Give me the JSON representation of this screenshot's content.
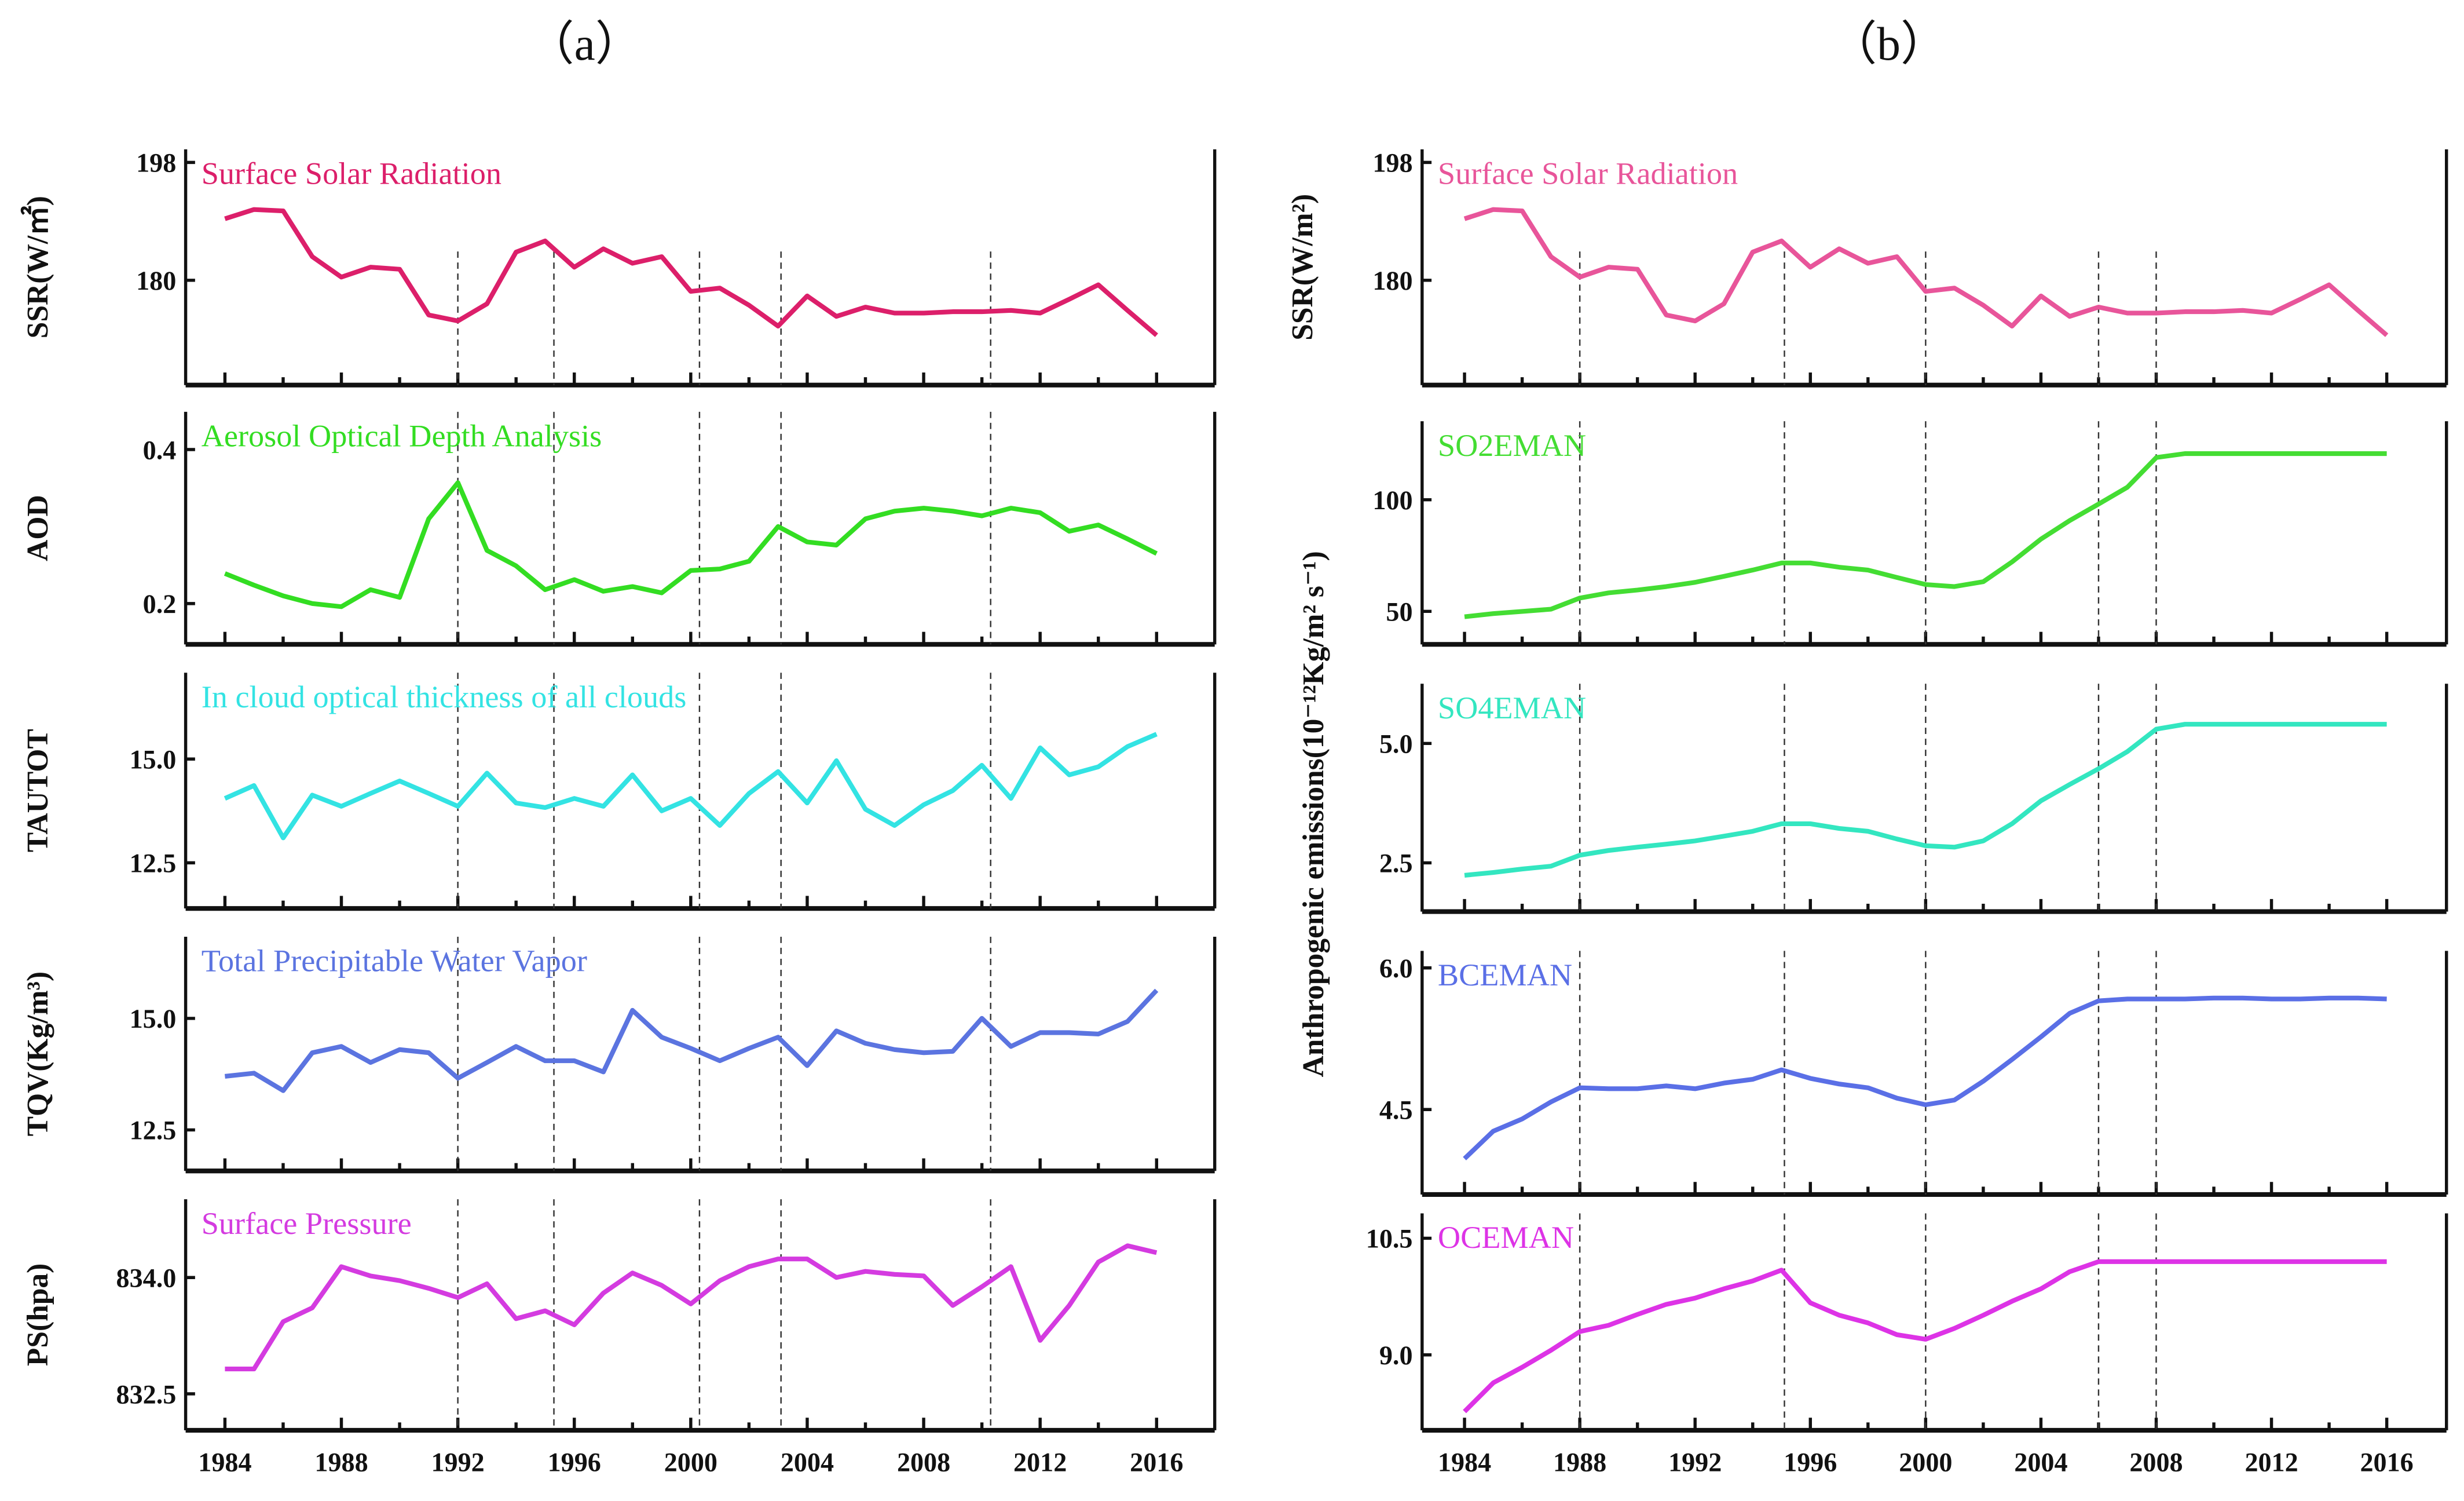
{
  "titles": {
    "a": "（a）",
    "b": "（b）"
  },
  "shared_ylabel_b": "Anthropogenic emissions(10⁻¹²Kg/m² s⁻¹)",
  "x_tick_labels": [
    "1984",
    "1988",
    "1992",
    "1996",
    "2000",
    "2004",
    "2008",
    "2012",
    "2016"
  ],
  "chart_data": [
    {
      "type": "line",
      "panel": "a",
      "label": "Surface Solar Radiation",
      "ylabel": "SSR(W/㎡)",
      "color": "#dc1f6a",
      "ylim": [
        164,
        200
      ],
      "yticks": [
        {
          "v": 180,
          "t": "180"
        },
        {
          "v": 198,
          "t": "198"
        }
      ],
      "dashed_years": [
        1992,
        1995.3,
        2000.3,
        2003.1,
        2010.3
      ],
      "values": [
        189.4,
        190.8,
        190.6,
        183.6,
        180.5,
        182,
        181.7,
        174.7,
        173.8,
        176.4,
        184.3,
        186,
        182,
        184.8,
        182.6,
        183.6,
        178.3,
        178.8,
        176.2,
        173,
        177.6,
        174.5,
        175.9,
        175,
        175,
        175.2,
        175.2,
        175.4,
        175,
        177.1,
        179.3,
        175.4,
        171.6
      ]
    },
    {
      "type": "line",
      "panel": "a",
      "label": "Aerosol Optical Depth Analysis",
      "ylabel": "AOD",
      "color": "#33dd22",
      "ylim": [
        0.147,
        0.449
      ],
      "yticks": [
        {
          "v": 0.2,
          "t": "0.2"
        },
        {
          "v": 0.4,
          "t": "0.4"
        }
      ],
      "dashed_years": [
        1992,
        1995.3,
        2000.3,
        2003.1,
        2010.3
      ],
      "values": [
        0.239,
        0.224,
        0.21,
        0.2,
        0.196,
        0.218,
        0.208,
        0.31,
        0.357,
        0.269,
        0.249,
        0.218,
        0.231,
        0.216,
        0.222,
        0.214,
        0.243,
        0.245,
        0.255,
        0.3,
        0.28,
        0.276,
        0.31,
        0.32,
        0.324,
        0.32,
        0.314,
        0.324,
        0.318,
        0.294,
        0.302,
        0.284,
        0.265
      ]
    },
    {
      "type": "line",
      "panel": "a",
      "label": "In cloud optical thickness of all clouds",
      "ylabel": "TAUTOT",
      "color": "#33e3e3",
      "ylim": [
        11.4,
        17.08
      ],
      "yticks": [
        {
          "v": 12.5,
          "t": "12.5"
        },
        {
          "v": 15,
          "t": "15.0"
        }
      ],
      "dashed_years": [
        1992,
        1995.3,
        2000.3,
        2003.1,
        2010.3
      ],
      "values": [
        14.05,
        14.36,
        13.1,
        14.13,
        13.86,
        14.17,
        14.47,
        14.17,
        13.86,
        14.66,
        13.94,
        13.83,
        14.05,
        13.86,
        14.62,
        13.75,
        14.05,
        13.4,
        14.17,
        14.7,
        13.94,
        14.96,
        13.79,
        13.4,
        13.9,
        14.24,
        14.85,
        14.05,
        15.27,
        14.62,
        14.81,
        15.3,
        15.6
      ]
    },
    {
      "type": "line",
      "panel": "a",
      "label": "Total Precipitable Water Vapor",
      "ylabel": "TQV(Kg/m³)",
      "color": "#5b74e0",
      "ylim": [
        11.58,
        16.83
      ],
      "yticks": [
        {
          "v": 12.5,
          "t": "12.5"
        },
        {
          "v": 15,
          "t": "15.0"
        }
      ],
      "dashed_years": [
        1992,
        1995.3,
        2000.3,
        2003.1,
        2010.3
      ],
      "values": [
        13.7,
        13.77,
        13.38,
        14.23,
        14.37,
        14.01,
        14.3,
        14.23,
        13.66,
        14.01,
        14.37,
        14.05,
        14.05,
        13.8,
        15.18,
        14.58,
        14.33,
        14.05,
        14.33,
        14.58,
        13.94,
        14.72,
        14.44,
        14.3,
        14.23,
        14.26,
        15.0,
        14.37,
        14.68,
        14.68,
        14.65,
        14.93,
        15.63
      ]
    },
    {
      "type": "line",
      "panel": "a",
      "label": "Surface Pressure",
      "ylabel": "PS(hpa)",
      "color": "#d43be0",
      "ylim": [
        832.03,
        835.01
      ],
      "yticks": [
        {
          "v": 832.5,
          "t": "832.5"
        },
        {
          "v": 834,
          "t": "834.0"
        }
      ],
      "dashed_years": [
        1992,
        1995.3,
        2000.3,
        2003.1,
        2010.3
      ],
      "values": [
        832.82,
        832.82,
        833.43,
        833.61,
        834.14,
        834.02,
        833.96,
        833.86,
        833.74,
        833.92,
        833.47,
        833.57,
        833.39,
        833.8,
        834.06,
        833.9,
        833.66,
        833.96,
        834.14,
        834.24,
        834.24,
        834.0,
        834.08,
        834.04,
        834.02,
        833.64,
        833.88,
        834.14,
        833.19,
        833.64,
        834.2,
        834.41,
        834.32
      ]
    },
    {
      "type": "line",
      "panel": "b",
      "label": "Surface Solar Radiation",
      "ylabel": "SSR(W/m²)",
      "color": "#e8559a",
      "ylim": [
        164,
        200
      ],
      "yticks": [
        {
          "v": 180,
          "t": "180"
        },
        {
          "v": 198,
          "t": "198"
        }
      ],
      "dashed_years": [
        1988,
        1995.1,
        2000,
        2006,
        2008
      ],
      "values": [
        189.4,
        190.8,
        190.6,
        183.6,
        180.5,
        182,
        181.7,
        174.7,
        173.8,
        176.4,
        184.3,
        186,
        182,
        184.8,
        182.6,
        183.6,
        178.3,
        178.8,
        176.2,
        173,
        177.6,
        174.5,
        175.9,
        175,
        175,
        175.2,
        175.2,
        175.4,
        175,
        177.1,
        179.3,
        175.4,
        171.6
      ]
    },
    {
      "type": "line",
      "panel": "b",
      "label": "SO2EMAN",
      "ylabel": "",
      "color": "#44dd33",
      "ylim": [
        35.2,
        135.2
      ],
      "yticks": [
        {
          "v": 50,
          "t": "50"
        },
        {
          "v": 100,
          "t": "100"
        }
      ],
      "dashed_years": [
        1988,
        1995.1,
        2000,
        2006,
        2008
      ],
      "values": [
        47.6,
        49,
        50,
        51,
        56,
        58.3,
        59.6,
        61.1,
        63,
        65.7,
        68.5,
        71.7,
        71.7,
        69.8,
        68.5,
        65.2,
        62,
        61.1,
        63.3,
        72.2,
        82.4,
        90.7,
        98.1,
        105.6,
        118.9,
        120.7,
        120.7,
        120.7,
        120.7,
        120.7,
        120.7,
        120.7,
        120.7
      ]
    },
    {
      "type": "line",
      "panel": "b",
      "label": "SO4EMAN",
      "ylabel": "",
      "color": "#33e6c0",
      "ylim": [
        1.48,
        6.25
      ],
      "yticks": [
        {
          "v": 2.5,
          "t": "2.5"
        },
        {
          "v": 5,
          "t": "5.0"
        }
      ],
      "dashed_years": [
        1988,
        1995.1,
        2000,
        2006,
        2008
      ],
      "values": [
        2.24,
        2.3,
        2.37,
        2.43,
        2.66,
        2.76,
        2.83,
        2.89,
        2.96,
        3.06,
        3.16,
        3.32,
        3.32,
        3.22,
        3.16,
        3.0,
        2.86,
        2.83,
        2.96,
        3.32,
        3.8,
        4.14,
        4.47,
        4.83,
        5.3,
        5.4,
        5.4,
        5.4,
        5.4,
        5.4,
        5.4,
        5.4,
        5.4
      ]
    },
    {
      "type": "line",
      "panel": "b",
      "label": "BCEMAN",
      "ylabel": "",
      "color": "#5a6fe6",
      "ylim": [
        3.6,
        6.18
      ],
      "yticks": [
        {
          "v": 4.5,
          "t": "4.5"
        },
        {
          "v": 6,
          "t": "6.0"
        }
      ],
      "dashed_years": [
        1988,
        1995.1,
        2000,
        2006,
        2008
      ],
      "values": [
        3.98,
        4.27,
        4.4,
        4.58,
        4.73,
        4.72,
        4.72,
        4.75,
        4.72,
        4.78,
        4.82,
        4.92,
        4.83,
        4.77,
        4.73,
        4.62,
        4.55,
        4.6,
        4.8,
        5.03,
        5.27,
        5.52,
        5.65,
        5.67,
        5.67,
        5.67,
        5.68,
        5.68,
        5.67,
        5.67,
        5.68,
        5.68,
        5.67
      ]
    },
    {
      "type": "line",
      "panel": "b",
      "label": "OCEMAN",
      "ylabel": "",
      "color": "#dd33e6",
      "ylim": [
        8.03,
        10.82
      ],
      "yticks": [
        {
          "v": 9,
          "t": "9.0"
        },
        {
          "v": 10.5,
          "t": "10.5"
        }
      ],
      "dashed_years": [
        1988,
        1995.1,
        2000,
        2006,
        2008
      ],
      "values": [
        8.27,
        8.64,
        8.84,
        9.06,
        9.3,
        9.38,
        9.52,
        9.65,
        9.73,
        9.85,
        9.95,
        10.09,
        9.67,
        9.51,
        9.41,
        9.26,
        9.2,
        9.34,
        9.51,
        9.69,
        9.85,
        10.07,
        10.2,
        10.2,
        10.2,
        10.2,
        10.2,
        10.2,
        10.2,
        10.2,
        10.2,
        10.2,
        10.2
      ]
    }
  ],
  "x_years_start": 1984,
  "x_years_end": 2016
}
